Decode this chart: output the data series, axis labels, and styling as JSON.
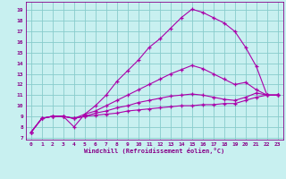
{
  "xlabel": "Windchill (Refroidissement éolien,°C)",
  "background_color": "#c8f0f0",
  "grid_color": "#aadddd",
  "line_color": "#aa00aa",
  "xlim": [
    -0.5,
    23.5
  ],
  "ylim": [
    6.8,
    19.8
  ],
  "xticks": [
    0,
    1,
    2,
    3,
    4,
    5,
    6,
    7,
    8,
    9,
    10,
    11,
    12,
    13,
    14,
    15,
    16,
    17,
    18,
    19,
    20,
    21,
    22,
    23
  ],
  "yticks": [
    7,
    8,
    9,
    10,
    11,
    12,
    13,
    14,
    15,
    16,
    17,
    18,
    19
  ],
  "series": [
    [
      7.5,
      8.8,
      9.0,
      9.0,
      8.0,
      9.2,
      10.0,
      11.0,
      12.3,
      13.3,
      14.3,
      15.5,
      16.3,
      17.3,
      18.3,
      19.1,
      18.8,
      18.3,
      17.8,
      17.0,
      null,
      null,
      null,
      null
    ],
    [
      null,
      null,
      null,
      null,
      null,
      null,
      null,
      null,
      null,
      null,
      null,
      null,
      null,
      null,
      null,
      null,
      null,
      null,
      null,
      null,
      15.5,
      13.7,
      11.0,
      11.0
    ],
    [
      7.5,
      8.8,
      9.0,
      9.0,
      8.8,
      9.2,
      9.5,
      10.0,
      10.5,
      11.0,
      11.5,
      12.0,
      12.5,
      13.0,
      13.4,
      13.8,
      13.5,
      13.0,
      12.5,
      12.0,
      12.2,
      11.5,
      11.0,
      11.0
    ],
    [
      7.5,
      8.8,
      9.0,
      9.0,
      8.8,
      9.0,
      9.3,
      9.5,
      9.8,
      10.0,
      10.3,
      10.5,
      10.7,
      10.9,
      11.0,
      11.1,
      11.0,
      10.8,
      10.6,
      10.5,
      10.8,
      11.2,
      11.0,
      11.0
    ],
    [
      7.5,
      8.8,
      9.0,
      9.0,
      8.8,
      9.0,
      9.1,
      9.2,
      9.3,
      9.5,
      9.6,
      9.7,
      9.8,
      9.9,
      10.0,
      10.0,
      10.1,
      10.1,
      10.2,
      10.2,
      10.5,
      10.8,
      11.0,
      11.0
    ]
  ]
}
